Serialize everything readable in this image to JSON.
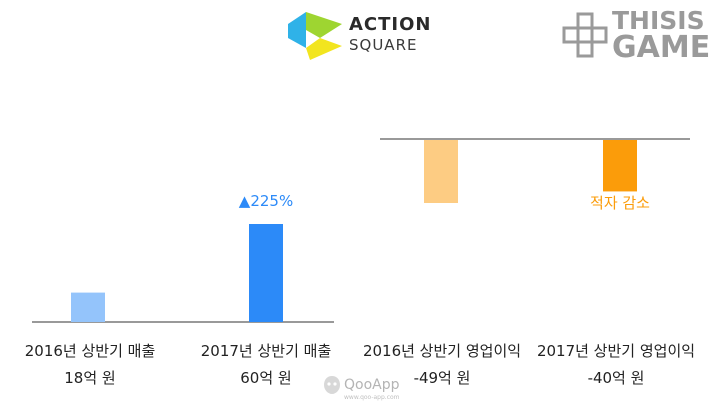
{
  "logos": {
    "action_square": {
      "name": "ACTION",
      "sub": "SQUARE",
      "colors": [
        "#2fb2e8",
        "#9ed531",
        "#f2e51f"
      ]
    },
    "thisisgame": {
      "line1": "THISIS",
      "line2": "GAME",
      "color": "#9a9a9a"
    },
    "watermark": {
      "name": "QooApp",
      "url": "www.qoo-app.com"
    }
  },
  "chart_data": [
    {
      "type": "bar",
      "categories": [
        "2016년 상반기 매출",
        "2017년 상반기 매출"
      ],
      "values": [
        18,
        60
      ],
      "value_labels": [
        "18억 원",
        "60억 원"
      ],
      "units": "억 원",
      "colors": [
        "#94c4fb",
        "#2c8af8"
      ],
      "annotation": {
        "text": "▲225%",
        "category_index": 1,
        "color": "#2c8af8"
      },
      "ylim": [
        0,
        60
      ],
      "grid": false
    },
    {
      "type": "bar",
      "categories": [
        "2016년 상반기 영업이익",
        "2017년 상반기 영업이익"
      ],
      "values": [
        -49,
        -40
      ],
      "value_labels": [
        "-49억 원",
        "-40억 원"
      ],
      "units": "억 원",
      "colors": [
        "#fdcc83",
        "#fb9c0a"
      ],
      "annotation": {
        "text": "적자 감소",
        "category_index": 1,
        "color": "#fb9c0a"
      },
      "ylim": [
        -49,
        0
      ],
      "grid": false
    }
  ]
}
